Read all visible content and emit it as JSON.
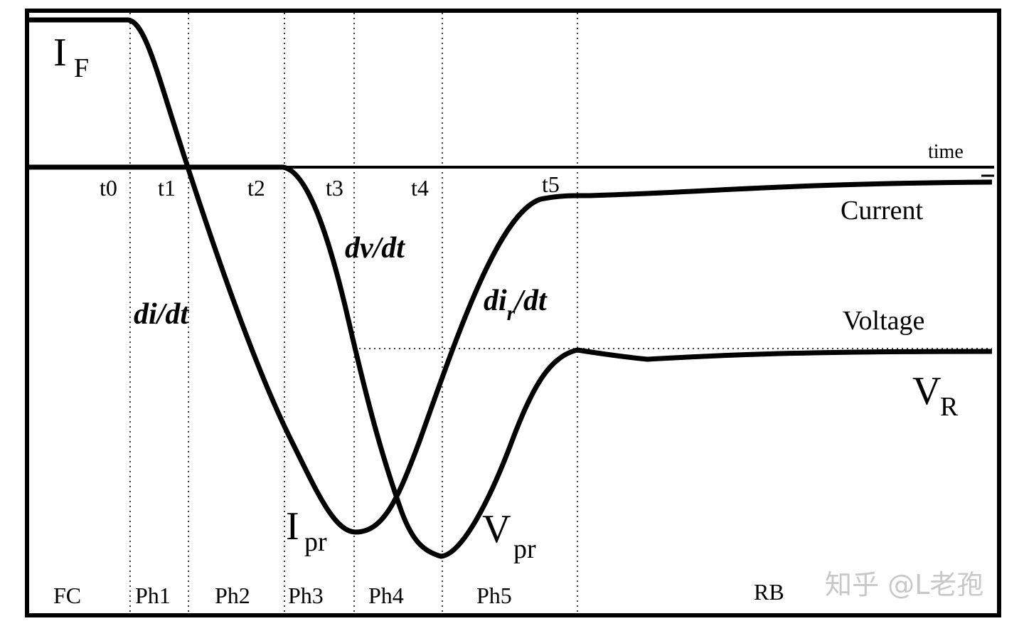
{
  "labels": {
    "forward_current": {
      "main": "I",
      "sub": "F"
    },
    "time": "time",
    "times": [
      "t0",
      "t1",
      "t2",
      "t3",
      "t4",
      "t5"
    ],
    "current": "Current",
    "voltage": "Voltage",
    "dv_dt": "dv/dt",
    "di_dt": "di/dt",
    "dir_dt": {
      "main": "di",
      "sub": "r",
      "tail": "/dt"
    },
    "reverse_voltage": {
      "main": "V",
      "sub": "R"
    },
    "peak_current": {
      "main": "I",
      "sub": "pr"
    },
    "peak_voltage": {
      "main": "V",
      "sub": "pr"
    },
    "phases": [
      "FC",
      "Ph1",
      "Ph2",
      "Ph3",
      "Ph4",
      "Ph5",
      "RB"
    ],
    "watermark": "知乎 @L老孢"
  }
}
